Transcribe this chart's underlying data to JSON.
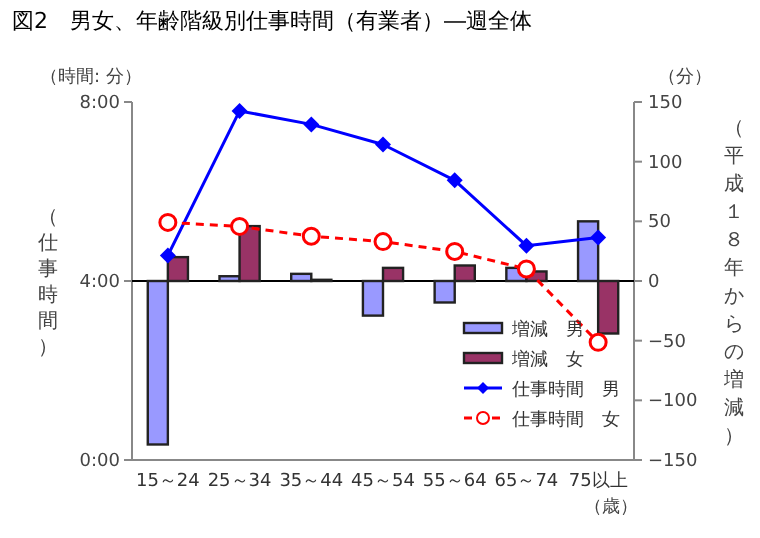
{
  "chart_data": {
    "type": "bar",
    "title": "図2　男女、年齢階級別仕事時間（有業者）―週全体",
    "categories": [
      "15～24",
      "25～34",
      "35～44",
      "45～54",
      "55～64",
      "65～74",
      "75以上"
    ],
    "series": [
      {
        "name": "増減　男",
        "axis": "y2",
        "color": "#9999ff",
        "values": [
          -137,
          4,
          6,
          -29,
          -18,
          11,
          50
        ]
      },
      {
        "name": "増減　女",
        "axis": "y2",
        "color": "#993366",
        "values": [
          20,
          46,
          1,
          11,
          13,
          8,
          -44
        ]
      },
      {
        "name": "仕事時間　男",
        "type": "line",
        "axis": "y",
        "color": "#0000ff",
        "marker": "diamond",
        "line_style": "solid",
        "values": [
          4.57,
          7.8,
          7.5,
          7.05,
          6.25,
          4.79,
          4.97
        ]
      },
      {
        "name": "仕事時間　女",
        "type": "line",
        "axis": "y",
        "color": "#ff0000",
        "marker": "circle",
        "line_style": "dashed",
        "values": [
          5.31,
          5.22,
          5.0,
          4.88,
          4.66,
          4.27,
          2.63
        ]
      }
    ],
    "ylabel": "（仕事時間）",
    "y2label": "（平成１８年からの増減）",
    "ylim": [
      0,
      8
    ],
    "yticks": [
      {
        "value": 0,
        "label": "0:00"
      },
      {
        "value": 4,
        "label": "4:00"
      },
      {
        "value": 8,
        "label": "8:00"
      }
    ],
    "y2lim": [
      -150,
      150
    ],
    "y2ticks": [
      -150,
      -100,
      -50,
      0,
      50,
      100,
      150
    ],
    "annotations": [
      "（時間: 分）",
      "（分）",
      "（歳）"
    ],
    "ref_lines": [
      {
        "axis": "y2",
        "value": 0,
        "color": "#000000"
      }
    ],
    "legend": "bottom right",
    "grid": false
  }
}
